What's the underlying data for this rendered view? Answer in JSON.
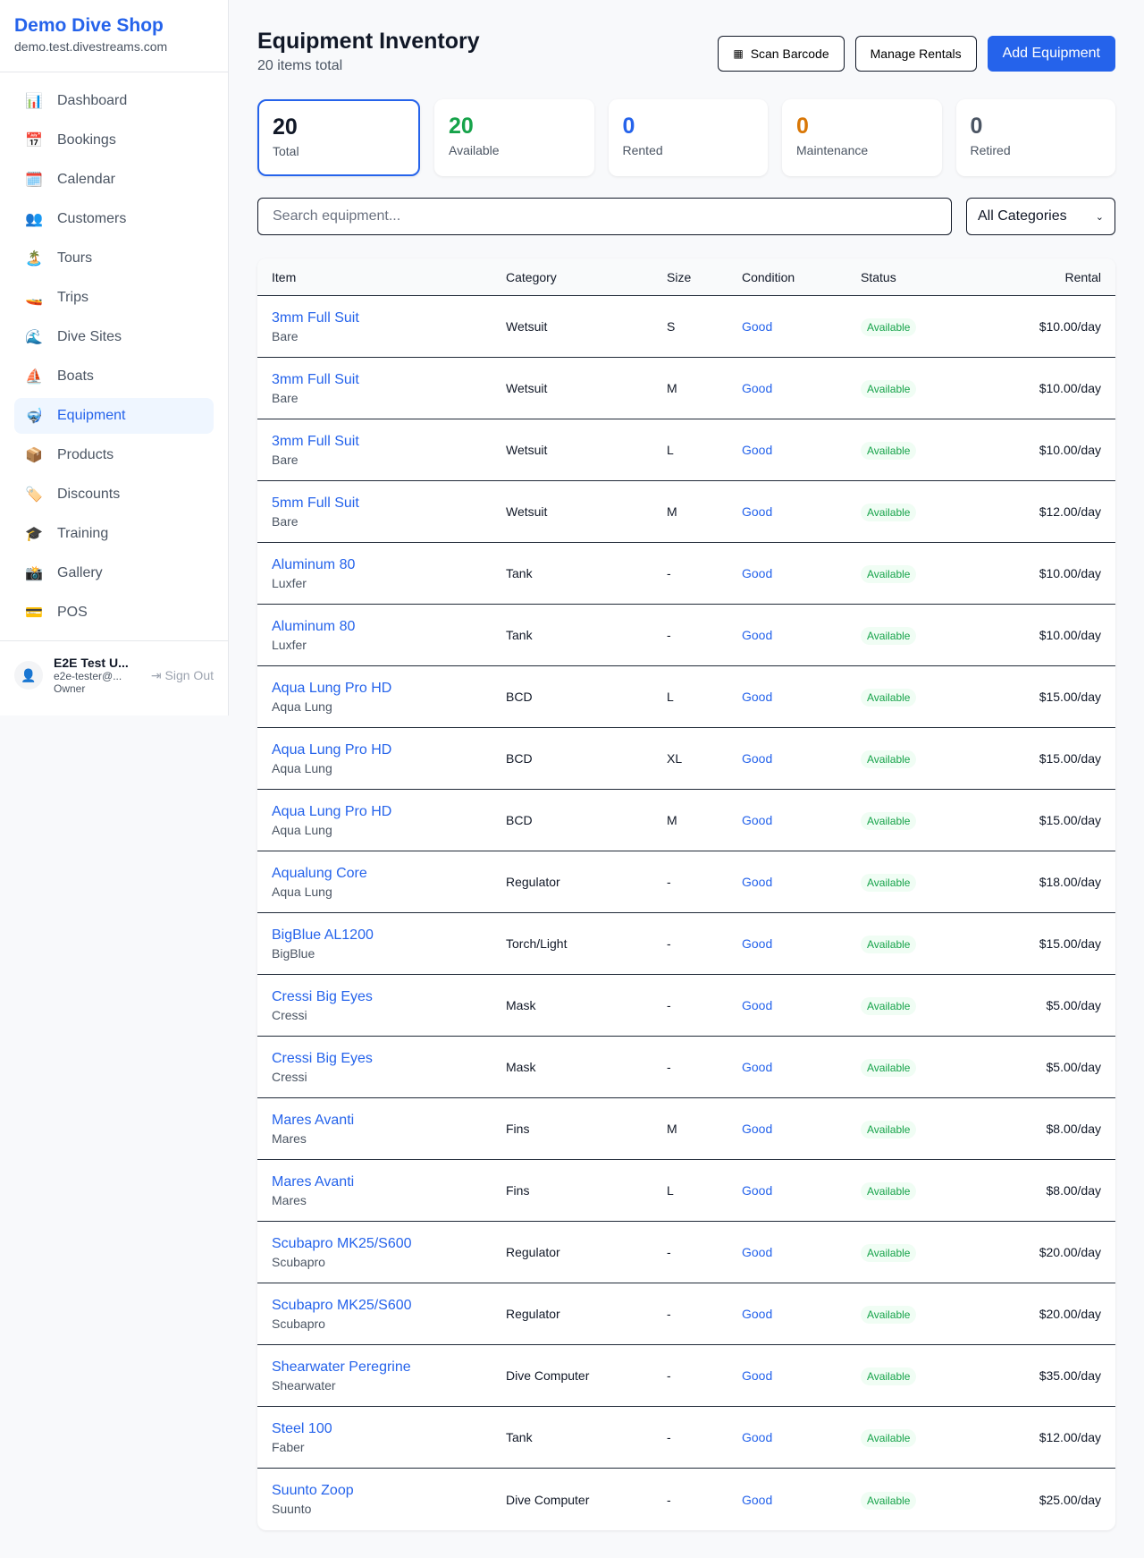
{
  "sidebar": {
    "brand": "Demo Dive Shop",
    "domain": "demo.test.divestreams.com",
    "items": [
      {
        "label": "Dashboard",
        "icon": "📊"
      },
      {
        "label": "Bookings",
        "icon": "📅"
      },
      {
        "label": "Calendar",
        "icon": "🗓️"
      },
      {
        "label": "Customers",
        "icon": "👥"
      },
      {
        "label": "Tours",
        "icon": "🏝️"
      },
      {
        "label": "Trips",
        "icon": "🚤"
      },
      {
        "label": "Dive Sites",
        "icon": "🌊"
      },
      {
        "label": "Boats",
        "icon": "⛵"
      },
      {
        "label": "Equipment",
        "icon": "🤿"
      },
      {
        "label": "Products",
        "icon": "📦"
      },
      {
        "label": "Discounts",
        "icon": "🏷️"
      },
      {
        "label": "Training",
        "icon": "🎓"
      },
      {
        "label": "Gallery",
        "icon": "📸"
      },
      {
        "label": "POS",
        "icon": "💳"
      }
    ],
    "active": "Equipment",
    "user": {
      "name": "E2E Test U...",
      "email": "e2e-tester@...",
      "role": "Owner",
      "sign_out": "Sign Out"
    }
  },
  "header": {
    "title": "Equipment Inventory",
    "subtitle": "20 items total",
    "scan": "Scan Barcode",
    "manage": "Manage Rentals",
    "add": "Add Equipment"
  },
  "stats": [
    {
      "value": "20",
      "label": "Total",
      "color": "#111827"
    },
    {
      "value": "20",
      "label": "Available",
      "color": "#16a34a"
    },
    {
      "value": "0",
      "label": "Rented",
      "color": "#2563eb"
    },
    {
      "value": "0",
      "label": "Maintenance",
      "color": "#d97706"
    },
    {
      "value": "0",
      "label": "Retired",
      "color": "#4b5563"
    }
  ],
  "filters": {
    "search_placeholder": "Search equipment...",
    "category": "All Categories"
  },
  "table": {
    "columns": [
      "Item",
      "Category",
      "Size",
      "Condition",
      "Status",
      "Rental"
    ],
    "rows": [
      [
        "3mm Full Suit",
        "Bare",
        "Wetsuit",
        "S",
        "Good",
        "Available",
        "$10.00/day"
      ],
      [
        "3mm Full Suit",
        "Bare",
        "Wetsuit",
        "M",
        "Good",
        "Available",
        "$10.00/day"
      ],
      [
        "3mm Full Suit",
        "Bare",
        "Wetsuit",
        "L",
        "Good",
        "Available",
        "$10.00/day"
      ],
      [
        "5mm Full Suit",
        "Bare",
        "Wetsuit",
        "M",
        "Good",
        "Available",
        "$12.00/day"
      ],
      [
        "Aluminum 80",
        "Luxfer",
        "Tank",
        "-",
        "Good",
        "Available",
        "$10.00/day"
      ],
      [
        "Aluminum 80",
        "Luxfer",
        "Tank",
        "-",
        "Good",
        "Available",
        "$10.00/day"
      ],
      [
        "Aqua Lung Pro HD",
        "Aqua Lung",
        "BCD",
        "L",
        "Good",
        "Available",
        "$15.00/day"
      ],
      [
        "Aqua Lung Pro HD",
        "Aqua Lung",
        "BCD",
        "XL",
        "Good",
        "Available",
        "$15.00/day"
      ],
      [
        "Aqua Lung Pro HD",
        "Aqua Lung",
        "BCD",
        "M",
        "Good",
        "Available",
        "$15.00/day"
      ],
      [
        "Aqualung Core",
        "Aqua Lung",
        "Regulator",
        "-",
        "Good",
        "Available",
        "$18.00/day"
      ],
      [
        "BigBlue AL1200",
        "BigBlue",
        "Torch/Light",
        "-",
        "Good",
        "Available",
        "$15.00/day"
      ],
      [
        "Cressi Big Eyes",
        "Cressi",
        "Mask",
        "-",
        "Good",
        "Available",
        "$5.00/day"
      ],
      [
        "Cressi Big Eyes",
        "Cressi",
        "Mask",
        "-",
        "Good",
        "Available",
        "$5.00/day"
      ],
      [
        "Mares Avanti",
        "Mares",
        "Fins",
        "M",
        "Good",
        "Available",
        "$8.00/day"
      ],
      [
        "Mares Avanti",
        "Mares",
        "Fins",
        "L",
        "Good",
        "Available",
        "$8.00/day"
      ],
      [
        "Scubapro MK25/S600",
        "Scubapro",
        "Regulator",
        "-",
        "Good",
        "Available",
        "$20.00/day"
      ],
      [
        "Scubapro MK25/S600",
        "Scubapro",
        "Regulator",
        "-",
        "Good",
        "Available",
        "$20.00/day"
      ],
      [
        "Shearwater Peregrine",
        "Shearwater",
        "Dive Computer",
        "-",
        "Good",
        "Available",
        "$35.00/day"
      ],
      [
        "Steel 100",
        "Faber",
        "Tank",
        "-",
        "Good",
        "Available",
        "$12.00/day"
      ],
      [
        "Suunto Zoop",
        "Suunto",
        "Dive Computer",
        "-",
        "Good",
        "Available",
        "$25.00/day"
      ]
    ]
  }
}
